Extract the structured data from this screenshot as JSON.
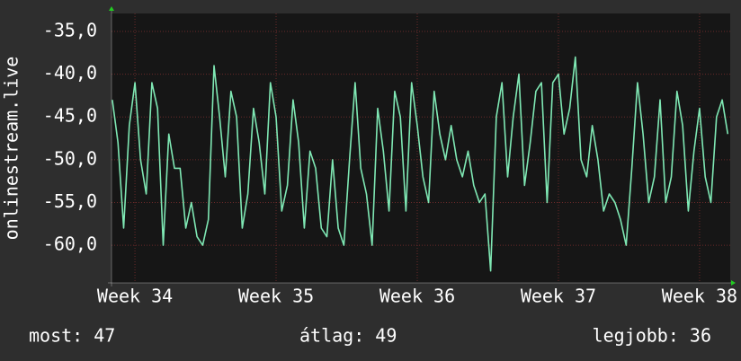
{
  "chart_data": {
    "type": "line",
    "y_label": "onlinestream.live",
    "x": [
      33.84,
      33.88,
      33.92,
      33.96,
      34,
      34.04,
      34.08,
      34.12,
      34.16,
      34.2,
      34.24,
      34.28,
      34.32,
      34.36,
      34.4,
      34.44,
      34.48,
      34.52,
      34.56,
      34.6,
      34.64,
      34.68,
      34.72,
      34.76,
      34.8,
      34.84,
      34.88,
      34.92,
      34.96,
      35,
      35.04,
      35.08,
      35.12,
      35.16,
      35.2,
      35.24,
      35.28,
      35.32,
      35.36,
      35.4,
      35.44,
      35.48,
      35.52,
      35.56,
      35.6,
      35.64,
      35.68,
      35.72,
      35.76,
      35.8,
      35.84,
      35.88,
      35.92,
      35.96,
      36,
      36.04,
      36.08,
      36.12,
      36.16,
      36.2,
      36.24,
      36.28,
      36.32,
      36.36,
      36.4,
      36.44,
      36.48,
      36.52,
      36.56,
      36.6,
      36.64,
      36.68,
      36.72,
      36.76,
      36.8,
      36.84,
      36.88,
      36.92,
      36.96,
      37,
      37.04,
      37.08,
      37.12,
      37.16,
      37.2,
      37.24,
      37.28,
      37.32,
      37.36,
      37.4,
      37.44,
      37.48,
      37.52,
      37.56,
      37.6,
      37.64,
      37.68,
      37.72,
      37.76,
      37.8,
      37.84,
      37.88,
      37.92,
      37.96,
      38,
      38.04,
      38.08,
      38.12,
      38.16,
      38.2
    ],
    "series": [
      {
        "color": "#7fe8b4",
        "values": [
          -43,
          -48,
          -58,
          -46,
          -41,
          -50,
          -54,
          -41,
          -44,
          -60,
          -47,
          -51,
          -51,
          -58,
          -55,
          -59,
          -60,
          -57,
          -39,
          -45,
          -52,
          -42,
          -45,
          -58,
          -54,
          -44,
          -48,
          -54,
          -41,
          -45,
          -56,
          -53,
          -43,
          -48,
          -58,
          -49,
          -51,
          -58,
          -59,
          -50,
          -58,
          -60,
          -50,
          -41,
          -51,
          -54,
          -60,
          -44,
          -49,
          -56,
          -42,
          -45,
          -56,
          -41,
          -46,
          -52,
          -55,
          -42,
          -47,
          -50,
          -46,
          -50,
          -52,
          -49,
          -53,
          -55,
          -54,
          -63,
          -45,
          -41,
          -52,
          -45,
          -40,
          -53,
          -48,
          -42,
          -41,
          -55,
          -41,
          -40,
          -47,
          -44,
          -38,
          -50,
          -52,
          -46,
          -50,
          -56,
          -54,
          -55,
          -57,
          -60,
          -51,
          -41,
          -47,
          -55,
          -52,
          -43,
          -55,
          -52,
          -42,
          -46,
          -56,
          -49,
          -44,
          -52,
          -55,
          -45,
          -43,
          -47
        ]
      }
    ],
    "xlim": [
      33.834,
      38.217
    ],
    "xticks": [
      {
        "value": 34,
        "label": "Week 34"
      },
      {
        "value": 35,
        "label": "Week 35"
      },
      {
        "value": 36,
        "label": "Week 36"
      },
      {
        "value": 37,
        "label": "Week 37"
      },
      {
        "value": 38,
        "label": "Week 38"
      }
    ],
    "ylim": [
      -64.4,
      -32.9
    ],
    "yticks": [
      {
        "value": -60,
        "label": "-60,0"
      },
      {
        "value": -55,
        "label": "-55,0"
      },
      {
        "value": -50,
        "label": "-50,0"
      },
      {
        "value": -45,
        "label": "-45,0"
      },
      {
        "value": -40,
        "label": "-40,0"
      },
      {
        "value": -35,
        "label": "-35,0"
      }
    ],
    "grid": true,
    "footer": [
      "most: 47",
      "átlag: 49",
      "legjobb: 36"
    ]
  }
}
